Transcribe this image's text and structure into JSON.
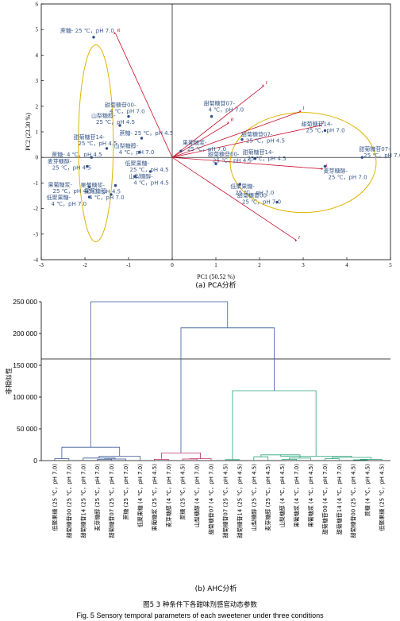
{
  "pca": {
    "type": "scatter",
    "xlabel": "PC1 (50.52 %)",
    "ylabel": "PC2 (23.30 %)",
    "xlim": [
      -3,
      5
    ],
    "ylim": [
      -4,
      6
    ],
    "xticks": [
      "-3",
      "-2",
      "-1",
      "0",
      "1",
      "2",
      "3",
      "4",
      "5"
    ],
    "yticks": [
      "-4",
      "-3",
      "-2",
      "-1",
      "0",
      "1",
      "2",
      "3",
      "4",
      "5",
      "6"
    ],
    "caption": "(a) PCA分析",
    "points": [
      {
        "x": -1.8,
        "y": 4.7,
        "label": "蔗糖- 25 ℃，pH 7.0"
      },
      {
        "x": -1.0,
        "y": 1.6,
        "label": "甜菊糖苷00-\n4 ℃，pH 7.0"
      },
      {
        "x": -1.2,
        "y": 1.25,
        "label": "山梨糖醇-\n25 ℃，pH 4.5"
      },
      {
        "x": -0.7,
        "y": 0.75,
        "label": "蔗糖- 25 ℃，pH 4.5"
      },
      {
        "x": -1.5,
        "y": 0.35,
        "label": "甜菊糖苷14-\n25 ℃，pH 4.5"
      },
      {
        "x": -0.75,
        "y": 0.2,
        "label": "山梨糖醇-\n4 ℃，pH 7.0"
      },
      {
        "x": -1.85,
        "y": 0.0,
        "label": "蔗糖- 4 ℃，pH 4.5"
      },
      {
        "x": -1.95,
        "y": -0.35,
        "label": "麦芽糖醇-\n25 ℃，pH 4.5"
      },
      {
        "x": -0.5,
        "y": -0.55,
        "label": "低聚果糖-\n25 ℃，pH 4.5"
      },
      {
        "x": -0.85,
        "y": -0.75,
        "label": "山梨糖醇-\n4 ℃，pH 4.5"
      },
      {
        "x": -1.9,
        "y": -1.15,
        "label": "果葡糖浆-\n25 ℃，pH 4.5"
      },
      {
        "x": -1.3,
        "y": -1.1,
        "label": "果葡糖浆-\n4 ℃，pH 4.5"
      },
      {
        "x": -1.9,
        "y": -1.55,
        "label": "低聚果糖-\n4 ℃，pH 7.0"
      },
      {
        "x": -1.4,
        "y": -1.45,
        "label": "麦芽糖醇-\n4 ℃，pH 7.0"
      },
      {
        "x": 0.2,
        "y": 0.25,
        "label": "果葡糖浆-\n25 ℃，pH 7.0"
      },
      {
        "x": 0.9,
        "y": 1.6,
        "label": "甜菊糖苷07-\n4 ℃，pH 7.0"
      },
      {
        "x": 1.6,
        "y": 0.7,
        "label": "甜菊糖苷07-\n25 ℃，pH 4.5"
      },
      {
        "x": 1.0,
        "y": -0.25,
        "label": "甜菊糖苷00-\n25 ℃，pH 4.5"
      },
      {
        "x": 1.9,
        "y": -0.05,
        "label": "甜菊糖苷14-\n25 ℃，pH 4.5"
      },
      {
        "x": 3.5,
        "y": 1.05,
        "label": "甜菊糖苷14-\n25 ℃，pH 7.0"
      },
      {
        "x": 4.35,
        "y": 0.0,
        "label": "甜菊糖苷07-\n25 ℃，pH 7.0"
      },
      {
        "x": 3.5,
        "y": -0.35,
        "label": "麦芽糖醇-\n25 ℃，pH 7.0"
      },
      {
        "x": 1.55,
        "y": -1.05,
        "label": "低聚果糖-\n25 ℃，pH 7.0"
      },
      {
        "x": 2.4,
        "y": -1.75,
        "label": "甜菊糖苷00-\n25 ℃，pH 7.0"
      }
    ],
    "vectors": [
      {
        "x": -1.3,
        "y": 4.85,
        "label": "R"
      },
      {
        "x": 2.1,
        "y": 2.8,
        "label": "I"
      },
      {
        "x": 1.3,
        "y": 1.35,
        "label": "R"
      },
      {
        "x": 2.95,
        "y": 1.8,
        "label": "I"
      },
      {
        "x": 3.4,
        "y": 1.25,
        "label": "I"
      },
      {
        "x": 3.45,
        "y": -0.45,
        "label": "A"
      },
      {
        "x": 2.85,
        "y": -3.25,
        "label": "I"
      }
    ]
  },
  "ahc": {
    "type": "dendrogram",
    "ylabel": "非相似性",
    "ylim": [
      0,
      250000
    ],
    "yticks": [
      "0",
      "50 000",
      "100 000",
      "150 000",
      "200 000",
      "250 000"
    ],
    "cut_line": 160000,
    "caption": "(b) AHC分析",
    "leaves": [
      "低聚果糖 (25 ℃，pH 7.0)",
      "甜菊糖苷00 (25 ℃，pH 7.0)",
      "甜菊糖苷14 (25 ℃，pH 7.0)",
      "麦芽糖醇 (25 ℃，pH 7.0)",
      "甜菊糖苷07 (25 ℃，pH 7.0)",
      "蔗糖 (25 ℃，pH 7.0)",
      "低聚果糖 (4 ℃，pH 7.0)",
      "果葡糖浆 (25 ℃，pH 4.5)",
      "麦芽糖醇 (4 ℃，pH 7.0)",
      "蔗糖 (25 ℃，pH 4.5)",
      "山梨糖醇 (4 ℃，pH 7.0)",
      "甜菊糖苷07 (4 ℃，pH 7.0)",
      "甜菊糖苷07 (25 ℃，pH 4.5)",
      "甜菊糖苷14 (25 ℃，pH 4.5)",
      "山梨糖醇 (25 ℃，pH 4.5)",
      "麦芽糖醇 (25 ℃，pH 4.5)",
      "山梨糖醇 (4 ℃，pH 4.5)",
      "果葡糖浆 (4 ℃，pH 7.0)",
      "果葡糖浆 (4 ℃，pH 4.5)",
      "甜菊糖苷00 (4 ℃，pH 7.0)",
      "甜菊糖苷14 (4 ℃，pH 7.0)",
      "甜菊糖苷00 (25 ℃，pH 4.5)",
      "蔗糖 (4 ℃，pH 4.5)",
      "低聚果糖 (25 ℃，pH 4.5)"
    ],
    "cluster_colors": [
      "#3a5a9c",
      "#c0306a",
      "#2aa37a"
    ]
  },
  "figure": {
    "title_cn": "图5 3 种条件下各甜味剂感官动态参数",
    "title_en": "Fig. 5 Sensory temporal parameters of each sweetener under three conditions"
  }
}
